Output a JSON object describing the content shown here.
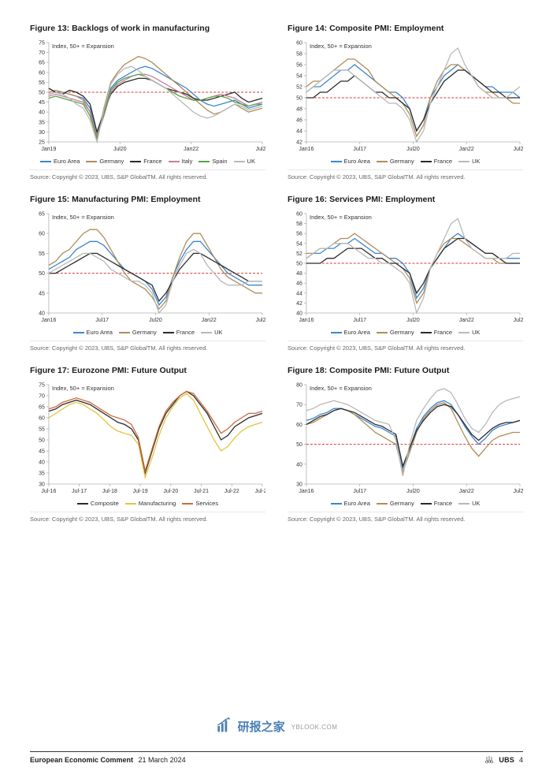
{
  "page": {
    "footer_title": "European Economic Comment",
    "footer_date": "21 March 2024",
    "footer_brand": "UBS",
    "page_number": "4",
    "watermark_main": "研报之家",
    "watermark_sub": "YBLOOK.COM"
  },
  "common": {
    "annotation": "Index, 50+ = Expansion",
    "source": "Source: Copyright © 2023, UBS, S&P GlobalTM. All rights reserved.",
    "colors": {
      "euro_area": "#3a86d1",
      "germany": "#b08c57",
      "france": "#2b2b2b",
      "italy": "#c77f9a",
      "spain": "#5aa147",
      "uk": "#b8b8b8",
      "composite": "#2b2b2b",
      "manufacturing": "#e0c640",
      "services": "#cf6a3d",
      "ref_line": "#d93434",
      "axis": "#b0b0b0",
      "text": "#333333"
    }
  },
  "grid": [
    {
      "id": "fig13",
      "title": "Figure 13: Backlogs of work in manufacturing",
      "y": {
        "min": 25,
        "max": 75,
        "step": 5,
        "ref": 50
      },
      "x_labels": [
        "Jan19",
        "Jul20",
        "Jan22",
        "Jul23"
      ],
      "legend": [
        {
          "label": "Euro Area",
          "color_key": "euro_area"
        },
        {
          "label": "Germany",
          "color_key": "germany"
        },
        {
          "label": "France",
          "color_key": "france"
        },
        {
          "label": "Italy",
          "color_key": "italy"
        },
        {
          "label": "Spain",
          "color_key": "spain"
        },
        {
          "label": "UK",
          "color_key": "uk"
        }
      ],
      "series": [
        {
          "color_key": "euro_area",
          "values": [
            49,
            50,
            50,
            49,
            48,
            47,
            42,
            28,
            40,
            52,
            56,
            58,
            60,
            62,
            63,
            62,
            60,
            58,
            56,
            54,
            52,
            49,
            46,
            44,
            43,
            44,
            45,
            46,
            44,
            42,
            43,
            44
          ]
        },
        {
          "color_key": "germany",
          "values": [
            50,
            51,
            50,
            49,
            48,
            46,
            40,
            26,
            42,
            55,
            60,
            64,
            66,
            68,
            67,
            65,
            62,
            59,
            56,
            53,
            50,
            47,
            44,
            41,
            39,
            40,
            42,
            44,
            42,
            40,
            41,
            42
          ]
        },
        {
          "color_key": "france",
          "values": [
            52,
            50,
            49,
            51,
            50,
            48,
            44,
            30,
            40,
            49,
            53,
            55,
            56,
            57,
            57,
            56,
            54,
            52,
            51,
            50,
            49,
            47,
            46,
            46,
            47,
            48,
            49,
            50,
            47,
            45,
            46,
            47
          ]
        },
        {
          "color_key": "italy",
          "values": [
            48,
            49,
            48,
            47,
            46,
            45,
            40,
            28,
            38,
            50,
            54,
            56,
            58,
            59,
            59,
            58,
            56,
            54,
            52,
            50,
            48,
            46,
            46,
            47,
            48,
            49,
            48,
            47,
            45,
            43,
            44,
            45
          ]
        },
        {
          "color_key": "spain",
          "values": [
            47,
            48,
            47,
            46,
            45,
            44,
            38,
            27,
            39,
            51,
            55,
            57,
            58,
            59,
            58,
            56,
            54,
            52,
            50,
            48,
            47,
            46,
            46,
            47,
            48,
            48,
            47,
            45,
            44,
            43,
            44,
            44
          ]
        },
        {
          "color_key": "uk",
          "values": [
            49,
            50,
            49,
            47,
            44,
            42,
            36,
            25,
            41,
            54,
            59,
            62,
            63,
            61,
            58,
            56,
            54,
            52,
            49,
            46,
            43,
            40,
            38,
            37,
            38,
            40,
            42,
            44,
            43,
            41,
            42,
            43
          ]
        }
      ]
    },
    {
      "id": "fig14",
      "title": "Figure 14: Composite PMI: Employment",
      "y": {
        "min": 42,
        "max": 60,
        "step": 2,
        "ref": 50
      },
      "x_labels": [
        "Jan16",
        "Jul17",
        "Jul20",
        "Jan22",
        "Jul23"
      ],
      "legend": [
        {
          "label": "Euro Area",
          "color_key": "euro_area"
        },
        {
          "label": "Germany",
          "color_key": "germany"
        },
        {
          "label": "France",
          "color_key": "france"
        },
        {
          "label": "UK",
          "color_key": "uk"
        }
      ],
      "series": [
        {
          "color_key": "euro_area",
          "values": [
            51,
            52,
            52,
            53,
            54,
            55,
            55,
            56,
            55,
            54,
            53,
            52,
            51,
            51,
            50,
            48,
            44,
            46,
            50,
            52,
            54,
            55,
            56,
            55,
            54,
            53,
            52,
            52,
            51,
            51,
            51,
            50
          ]
        },
        {
          "color_key": "germany",
          "values": [
            52,
            53,
            53,
            54,
            55,
            56,
            57,
            57,
            56,
            55,
            53,
            52,
            51,
            50,
            49,
            47,
            43,
            45,
            50,
            53,
            55,
            56,
            56,
            55,
            54,
            52,
            51,
            51,
            50,
            50,
            49,
            49
          ]
        },
        {
          "color_key": "france",
          "values": [
            50,
            50,
            51,
            51,
            52,
            53,
            53,
            54,
            53,
            52,
            51,
            51,
            50,
            50,
            49,
            48,
            44,
            46,
            49,
            51,
            53,
            54,
            55,
            55,
            54,
            53,
            52,
            51,
            51,
            50,
            50,
            50
          ]
        },
        {
          "color_key": "uk",
          "values": [
            51,
            52,
            53,
            54,
            55,
            55,
            55,
            54,
            53,
            52,
            51,
            50,
            49,
            49,
            48,
            46,
            42,
            44,
            49,
            52,
            55,
            58,
            59,
            56,
            54,
            52,
            51,
            50,
            50,
            50,
            51,
            52
          ]
        }
      ]
    },
    {
      "id": "fig15",
      "title": "Figure 15: Manufacturing PMI: Employment",
      "y": {
        "min": 40,
        "max": 65,
        "step": 5,
        "ref": 50
      },
      "x_labels": [
        "Jan16",
        "Jul17",
        "Jul20",
        "Jan22",
        "Jul23"
      ],
      "legend": [
        {
          "label": "Euro Area",
          "color_key": "euro_area"
        },
        {
          "label": "Germany",
          "color_key": "germany"
        },
        {
          "label": "France",
          "color_key": "france"
        },
        {
          "label": "UK",
          "color_key": "uk"
        }
      ],
      "series": [
        {
          "color_key": "euro_area",
          "values": [
            51,
            52,
            53,
            54,
            56,
            57,
            58,
            58,
            57,
            55,
            53,
            51,
            50,
            49,
            48,
            46,
            42,
            44,
            49,
            53,
            56,
            58,
            58,
            56,
            54,
            52,
            50,
            49,
            48,
            47,
            47,
            47
          ]
        },
        {
          "color_key": "germany",
          "values": [
            52,
            53,
            55,
            56,
            58,
            60,
            61,
            61,
            59,
            56,
            53,
            50,
            48,
            47,
            46,
            44,
            41,
            43,
            49,
            54,
            58,
            60,
            60,
            57,
            54,
            51,
            49,
            48,
            47,
            46,
            45,
            45
          ]
        },
        {
          "color_key": "france",
          "values": [
            50,
            50,
            51,
            52,
            53,
            54,
            55,
            55,
            54,
            53,
            52,
            51,
            50,
            49,
            48,
            47,
            43,
            45,
            48,
            51,
            53,
            55,
            55,
            54,
            53,
            52,
            51,
            50,
            49,
            48,
            48,
            48
          ]
        },
        {
          "color_key": "uk",
          "values": [
            50,
            51,
            52,
            53,
            54,
            55,
            55,
            54,
            53,
            51,
            50,
            49,
            48,
            48,
            47,
            45,
            40,
            42,
            48,
            52,
            55,
            56,
            55,
            52,
            50,
            48,
            47,
            47,
            47,
            48,
            48,
            48
          ]
        }
      ]
    },
    {
      "id": "fig16",
      "title": "Figure 16: Services PMI: Employment",
      "y": {
        "min": 40,
        "max": 60,
        "step": 2,
        "ref": 50
      },
      "x_labels": [
        "Jan16",
        "Jul17",
        "Jul20",
        "Jan22",
        "Jul23"
      ],
      "legend": [
        {
          "label": "Euro Area",
          "color_key": "euro_area"
        },
        {
          "label": "Germany",
          "color_key": "germany"
        },
        {
          "label": "France",
          "color_key": "france"
        },
        {
          "label": "UK",
          "color_key": "uk"
        }
      ],
      "series": [
        {
          "color_key": "euro_area",
          "values": [
            51,
            52,
            52,
            53,
            53,
            54,
            54,
            55,
            54,
            53,
            52,
            52,
            51,
            51,
            50,
            48,
            43,
            45,
            49,
            51,
            53,
            55,
            56,
            55,
            54,
            53,
            52,
            52,
            51,
            51,
            51,
            51
          ]
        },
        {
          "color_key": "germany",
          "values": [
            52,
            52,
            53,
            53,
            54,
            55,
            55,
            56,
            55,
            54,
            53,
            52,
            51,
            50,
            49,
            47,
            42,
            44,
            49,
            52,
            54,
            55,
            55,
            54,
            53,
            52,
            51,
            51,
            50,
            50,
            50,
            50
          ]
        },
        {
          "color_key": "france",
          "values": [
            50,
            50,
            50,
            51,
            51,
            52,
            53,
            53,
            53,
            52,
            51,
            51,
            50,
            50,
            49,
            48,
            44,
            46,
            49,
            51,
            53,
            54,
            55,
            55,
            54,
            53,
            52,
            52,
            51,
            50,
            50,
            50
          ]
        },
        {
          "color_key": "uk",
          "values": [
            51,
            52,
            53,
            53,
            54,
            54,
            54,
            53,
            52,
            51,
            51,
            50,
            50,
            49,
            48,
            46,
            40,
            43,
            49,
            52,
            55,
            58,
            59,
            55,
            53,
            52,
            51,
            51,
            51,
            51,
            52,
            52
          ]
        }
      ]
    },
    {
      "id": "fig17",
      "title": "Figure 17: Eurozone PMI: Future Output",
      "y": {
        "min": 30,
        "max": 75,
        "step": 5,
        "ref": null
      },
      "x_labels": [
        "Jul-16",
        "Jul-17",
        "Jul-18",
        "Jul-19",
        "Jul-20",
        "Jul-21",
        "Jul-22",
        "Jul-23"
      ],
      "legend": [
        {
          "label": "Composite",
          "color_key": "composite"
        },
        {
          "label": "Manufacturing",
          "color_key": "manufacturing"
        },
        {
          "label": "Services",
          "color_key": "services"
        }
      ],
      "series": [
        {
          "color_key": "composite",
          "values": [
            63,
            64,
            66,
            67,
            68,
            67,
            66,
            64,
            62,
            60,
            58,
            57,
            55,
            50,
            35,
            45,
            55,
            62,
            66,
            70,
            72,
            70,
            66,
            62,
            56,
            50,
            52,
            56,
            58,
            60,
            61,
            62
          ]
        },
        {
          "color_key": "manufacturing",
          "values": [
            60,
            62,
            64,
            66,
            67,
            66,
            64,
            62,
            59,
            56,
            54,
            53,
            52,
            48,
            33,
            42,
            52,
            60,
            65,
            69,
            71,
            68,
            62,
            56,
            50,
            45,
            47,
            51,
            54,
            56,
            57,
            58
          ]
        },
        {
          "color_key": "services",
          "values": [
            64,
            65,
            67,
            68,
            69,
            68,
            67,
            65,
            63,
            61,
            60,
            59,
            57,
            51,
            36,
            46,
            56,
            63,
            67,
            70,
            72,
            71,
            67,
            63,
            58,
            53,
            55,
            58,
            60,
            62,
            62,
            63
          ]
        }
      ]
    },
    {
      "id": "fig18",
      "title": "Figure 18: Composite PMI: Future Output",
      "y": {
        "min": 30,
        "max": 80,
        "step": 10,
        "ref": 50
      },
      "x_labels": [
        "Jan16",
        "Jul17",
        "Jul20",
        "Jan22",
        "Jul23"
      ],
      "legend": [
        {
          "label": "Euro Area",
          "color_key": "euro_area"
        },
        {
          "label": "Germany",
          "color_key": "germany"
        },
        {
          "label": "France",
          "color_key": "france"
        },
        {
          "label": "UK",
          "color_key": "uk"
        }
      ],
      "series": [
        {
          "color_key": "euro_area",
          "values": [
            62,
            63,
            65,
            66,
            68,
            68,
            67,
            65,
            63,
            61,
            59,
            58,
            56,
            54,
            38,
            48,
            58,
            64,
            68,
            71,
            72,
            70,
            65,
            59,
            54,
            50,
            53,
            57,
            59,
            60,
            61,
            62
          ]
        },
        {
          "color_key": "germany",
          "values": [
            60,
            61,
            63,
            65,
            67,
            68,
            67,
            65,
            62,
            59,
            56,
            54,
            52,
            50,
            36,
            46,
            56,
            63,
            67,
            70,
            71,
            68,
            61,
            54,
            48,
            44,
            48,
            52,
            54,
            55,
            56,
            56
          ]
        },
        {
          "color_key": "france",
          "values": [
            60,
            62,
            64,
            65,
            67,
            68,
            67,
            66,
            64,
            62,
            60,
            59,
            57,
            55,
            39,
            48,
            57,
            62,
            66,
            69,
            70,
            69,
            65,
            60,
            55,
            52,
            55,
            58,
            60,
            61,
            61,
            62
          ]
        },
        {
          "color_key": "uk",
          "values": [
            67,
            68,
            70,
            71,
            72,
            71,
            70,
            68,
            66,
            64,
            62,
            61,
            60,
            52,
            34,
            50,
            62,
            68,
            73,
            77,
            78,
            76,
            70,
            63,
            58,
            56,
            60,
            66,
            70,
            72,
            73,
            74
          ]
        }
      ]
    }
  ]
}
